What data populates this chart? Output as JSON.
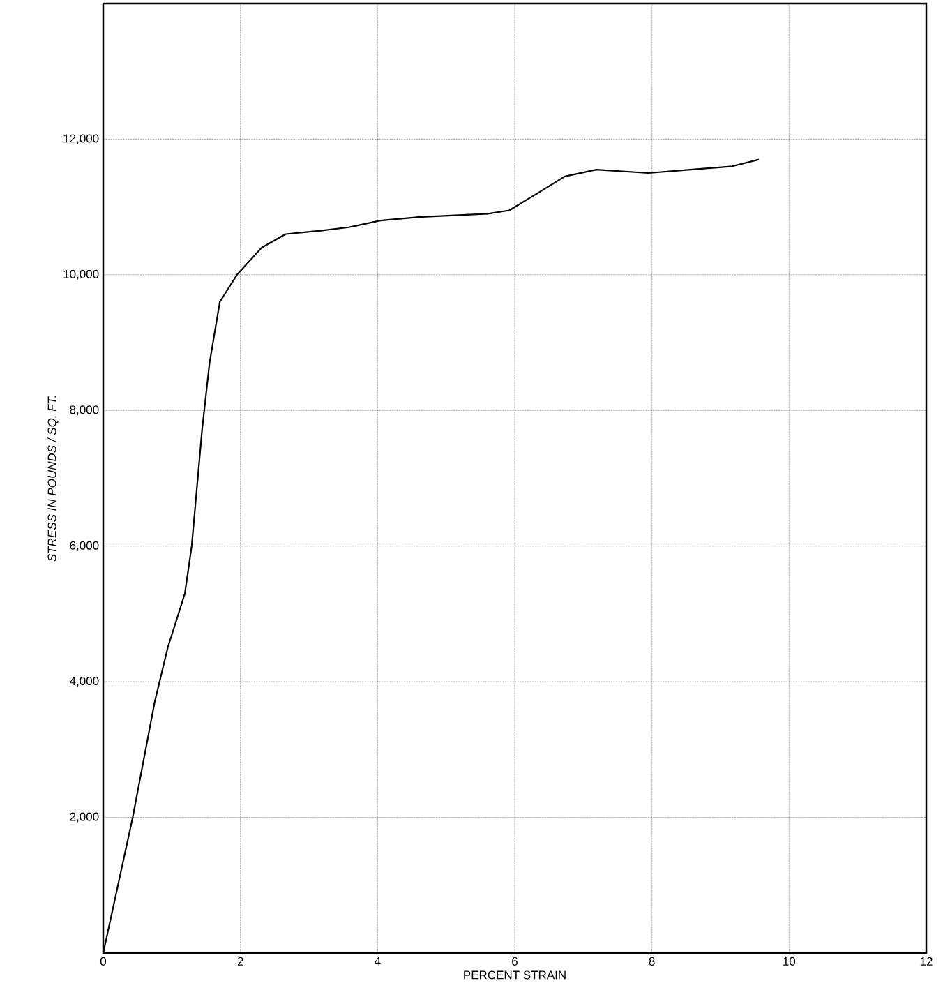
{
  "chart_data": {
    "type": "line",
    "xlabel": "PERCENT  STRAIN",
    "ylabel": "STRESS  IN  POUNDS / SQ. FT.",
    "xlim": [
      0,
      12
    ],
    "ylim": [
      0,
      14000
    ],
    "xticks": [
      0,
      2,
      4,
      6,
      8,
      10,
      12
    ],
    "yticks": [
      {
        "value": 2000,
        "label": "2,000"
      },
      {
        "value": 4000,
        "label": "4,000"
      },
      {
        "value": 6000,
        "label": "6,000"
      },
      {
        "value": 8000,
        "label": "8,000"
      },
      {
        "value": 10000,
        "label": "10,000"
      },
      {
        "value": 12000,
        "label": "12,000"
      }
    ],
    "grid": true,
    "marker": "none",
    "line_style": "solid",
    "series": [
      {
        "color": "#000000",
        "x": [
          0,
          0.43,
          0.75,
          0.94,
          1.19,
          1.29,
          1.44,
          1.55,
          1.7,
          1.95,
          2.31,
          2.66,
          3.17,
          3.58,
          4.04,
          4.6,
          5.61,
          5.92,
          6.33,
          6.73,
          7.19,
          7.95,
          8.56,
          9.17,
          9.56
        ],
        "values": [
          0,
          2000,
          3700,
          4500,
          5300,
          6000,
          7700,
          8700,
          9600,
          10000,
          10400,
          10600,
          10650,
          10700,
          10800,
          10850,
          10900,
          10950,
          11200,
          11450,
          11550,
          11500,
          11550,
          11600,
          11700
        ]
      }
    ]
  }
}
